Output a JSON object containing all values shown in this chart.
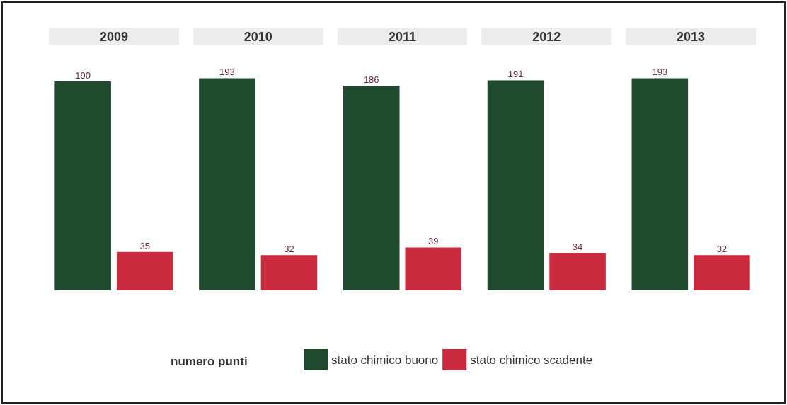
{
  "chart_data": {
    "type": "bar",
    "categories": [
      "2009",
      "2010",
      "2011",
      "2012",
      "2013"
    ],
    "series": [
      {
        "name": "stato chimico buono",
        "color": "#1f4a2e",
        "values": [
          190,
          193,
          186,
          191,
          193
        ]
      },
      {
        "name": "stato chimico scadente",
        "color": "#c92a3e",
        "values": [
          35,
          32,
          39,
          34,
          32
        ]
      }
    ],
    "data_labels": true,
    "legend": "bottom",
    "legend_title": "numero punti"
  }
}
